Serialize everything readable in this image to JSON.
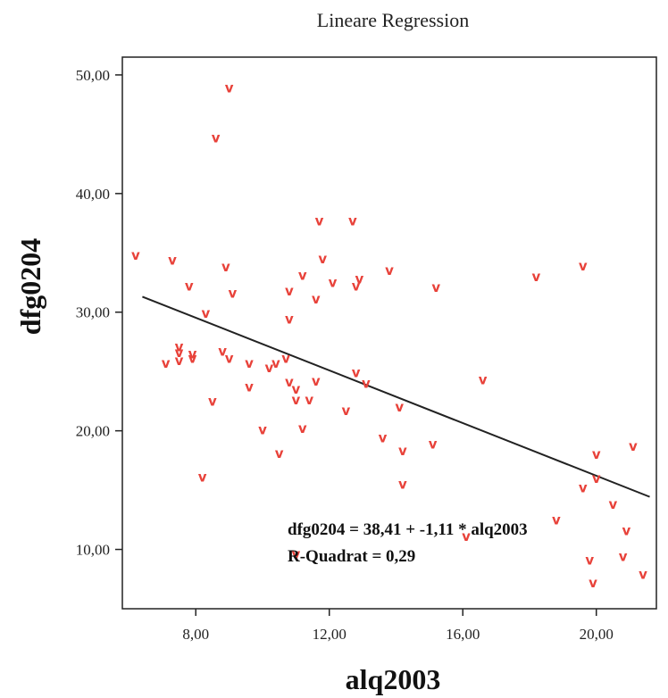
{
  "chart_data": {
    "type": "scatter",
    "title": "Lineare Regression",
    "xlabel": "alq2003",
    "ylabel": "dfg0204",
    "xlim": [
      5.8,
      21.8
    ],
    "ylim": [
      5.0,
      51.5
    ],
    "x_ticks": [
      8,
      12,
      16,
      20
    ],
    "x_tick_labels": [
      "8,00",
      "12,00",
      "16,00",
      "20,00"
    ],
    "y_ticks": [
      10,
      20,
      30,
      40,
      50
    ],
    "y_tick_labels": [
      "10,00",
      "20,00",
      "30,00",
      "40,00",
      "50,00"
    ],
    "marker_glyph": "v",
    "marker_color": "#e8423a",
    "line_color": "#222222",
    "grid": false,
    "regression": {
      "intercept": 38.41,
      "slope": -1.11,
      "x_range": [
        6.4,
        21.6
      ]
    },
    "annotations": [
      "dfg0204 = 38,41 + -1,11 * alq2003",
      "R-Quadrat = 0,29"
    ],
    "points": [
      [
        6.2,
        34.8
      ],
      [
        7.1,
        25.7
      ],
      [
        7.3,
        34.4
      ],
      [
        7.5,
        27.1
      ],
      [
        7.5,
        26.6
      ],
      [
        7.5,
        25.9
      ],
      [
        7.8,
        32.2
      ],
      [
        7.9,
        26.5
      ],
      [
        7.9,
        26.1
      ],
      [
        8.2,
        16.1
      ],
      [
        8.3,
        29.9
      ],
      [
        8.5,
        22.5
      ],
      [
        8.6,
        44.7
      ],
      [
        8.8,
        26.7
      ],
      [
        8.9,
        33.8
      ],
      [
        9.0,
        26.1
      ],
      [
        9.0,
        48.9
      ],
      [
        9.1,
        31.6
      ],
      [
        9.6,
        25.7
      ],
      [
        9.6,
        23.7
      ],
      [
        10.0,
        20.1
      ],
      [
        10.2,
        25.3
      ],
      [
        10.4,
        25.7
      ],
      [
        10.5,
        18.1
      ],
      [
        10.7,
        26.1
      ],
      [
        10.8,
        31.8
      ],
      [
        10.8,
        29.4
      ],
      [
        10.8,
        24.1
      ],
      [
        11.0,
        23.5
      ],
      [
        11.0,
        22.6
      ],
      [
        11.0,
        9.6
      ],
      [
        11.2,
        33.1
      ],
      [
        11.2,
        20.2
      ],
      [
        11.4,
        22.6
      ],
      [
        11.6,
        31.1
      ],
      [
        11.6,
        24.2
      ],
      [
        11.7,
        37.7
      ],
      [
        11.8,
        34.5
      ],
      [
        12.1,
        32.5
      ],
      [
        12.5,
        21.7
      ],
      [
        12.7,
        37.7
      ],
      [
        12.8,
        32.2
      ],
      [
        12.8,
        24.9
      ],
      [
        12.9,
        32.8
      ],
      [
        13.1,
        24.0
      ],
      [
        13.6,
        19.4
      ],
      [
        13.8,
        33.5
      ],
      [
        14.1,
        22.0
      ],
      [
        14.2,
        18.3
      ],
      [
        14.2,
        15.5
      ],
      [
        15.1,
        18.9
      ],
      [
        15.2,
        32.1
      ],
      [
        16.1,
        11.1
      ],
      [
        16.6,
        24.3
      ],
      [
        18.2,
        33.0
      ],
      [
        18.8,
        12.5
      ],
      [
        19.6,
        33.9
      ],
      [
        19.6,
        15.2
      ],
      [
        19.8,
        9.1
      ],
      [
        19.9,
        7.2
      ],
      [
        20.0,
        18.0
      ],
      [
        20.0,
        16.0
      ],
      [
        20.5,
        13.8
      ],
      [
        20.8,
        9.4
      ],
      [
        20.9,
        11.6
      ],
      [
        21.1,
        18.7
      ],
      [
        21.4,
        7.9
      ]
    ]
  }
}
